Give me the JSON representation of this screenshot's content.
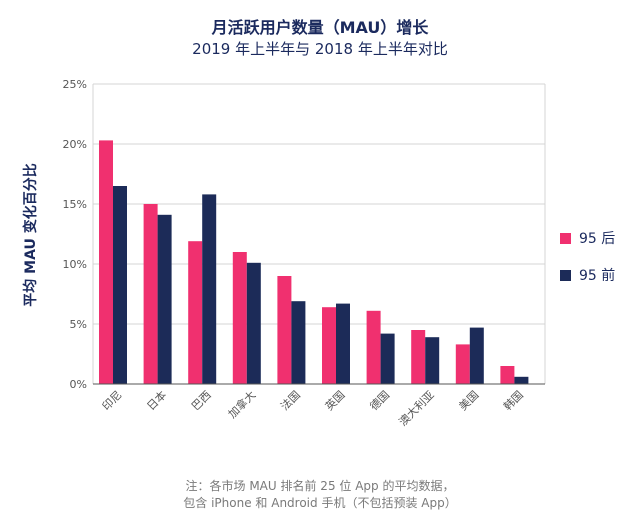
{
  "header": {
    "title": "月活跃用户数量（MAU）增长",
    "subtitle": "2019 年上半年与 2018 年上半年对比"
  },
  "footer": {
    "note_line1": "注：各市场 MAU 排名前 25 位 App 的平均数据，",
    "note_line2": "包含 iPhone 和 Android 手机（不包括预装 App）"
  },
  "colors": {
    "post95": "#f0306f",
    "pre95": "#1c2b58",
    "grid": "#d4d4d4",
    "axis": "#555555"
  },
  "chart_data": {
    "type": "bar",
    "title": "月活跃用户数量（MAU）增长",
    "subtitle": "2019 年上半年与 2018 年上半年对比",
    "ylabel": "平均 MAU 变化百分比",
    "xlabel": "",
    "ylim": [
      0,
      25
    ],
    "yticks": [
      0,
      5,
      10,
      15,
      20,
      25
    ],
    "ytick_labels": [
      "0%",
      "5%",
      "10%",
      "15%",
      "20%",
      "25%"
    ],
    "categories": [
      "印尼",
      "日本",
      "巴西",
      "加拿大",
      "法国",
      "英国",
      "德国",
      "澳大利亚",
      "美国",
      "韩国"
    ],
    "series": [
      {
        "name": "95 后",
        "color": "#f0306f",
        "values": [
          20.3,
          15.0,
          11.9,
          11.0,
          9.0,
          6.4,
          6.1,
          4.5,
          3.3,
          1.5
        ]
      },
      {
        "name": "95 前",
        "color": "#1c2b58",
        "values": [
          16.5,
          14.1,
          15.8,
          10.1,
          6.9,
          6.7,
          4.2,
          3.9,
          4.7,
          0.6
        ]
      }
    ],
    "legend_position": "right",
    "grid": true
  }
}
